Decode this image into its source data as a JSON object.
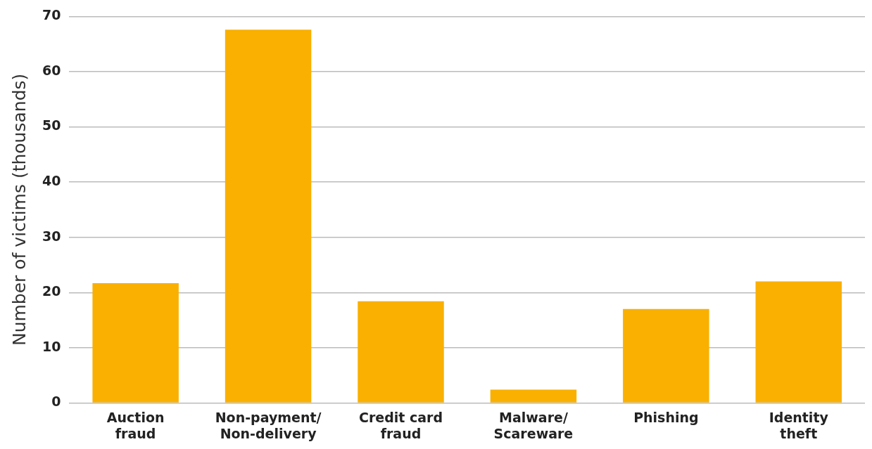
{
  "chart_data": {
    "type": "bar",
    "ylabel": "Number of victims (thousands)",
    "categories": [
      "Auction\nfraud",
      "Non-payment/\nNon-delivery",
      "Credit card\nfraud",
      "Malware/\nScareware",
      "Phishing",
      "Identity\ntheft"
    ],
    "values": [
      21.7,
      67.6,
      18.4,
      2.4,
      17.0,
      22.0
    ],
    "color": "#f9b000",
    "ylim": [
      0,
      70
    ],
    "yticks": [
      0,
      10,
      20,
      30,
      40,
      50,
      60,
      70
    ],
    "grid": "y"
  }
}
